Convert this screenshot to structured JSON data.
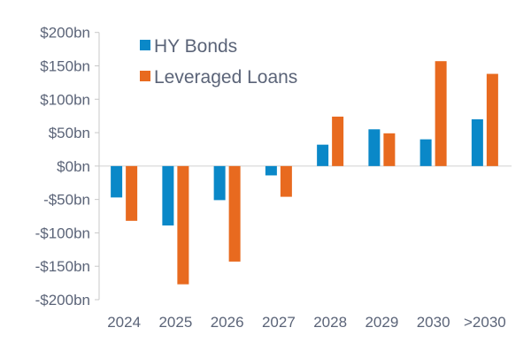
{
  "chart_data": {
    "type": "bar",
    "categories": [
      "2024",
      "2025",
      "2026",
      "2027",
      "2028",
      "2029",
      "2030",
      ">2030"
    ],
    "series": [
      {
        "name": "HY Bonds",
        "color": "#0a88c8",
        "values": [
          -47,
          -89,
          -51,
          -14,
          32,
          55,
          40,
          70
        ]
      },
      {
        "name": "Leveraged Loans",
        "color": "#e86a1f",
        "values": [
          -82,
          -177,
          -143,
          -46,
          74,
          49,
          157,
          138
        ]
      }
    ],
    "ylim": [
      -200,
      200
    ],
    "yticks": [
      200,
      150,
      100,
      50,
      0,
      -50,
      -100,
      -150,
      -200
    ],
    "ytick_labels": [
      "$200bn",
      "$150bn",
      "$100bn",
      "$50bn",
      "$0bn",
      "-$50bn",
      "-$100bn",
      "-$150bn",
      "-$200bn"
    ],
    "grid": false,
    "legend": "top-left"
  }
}
